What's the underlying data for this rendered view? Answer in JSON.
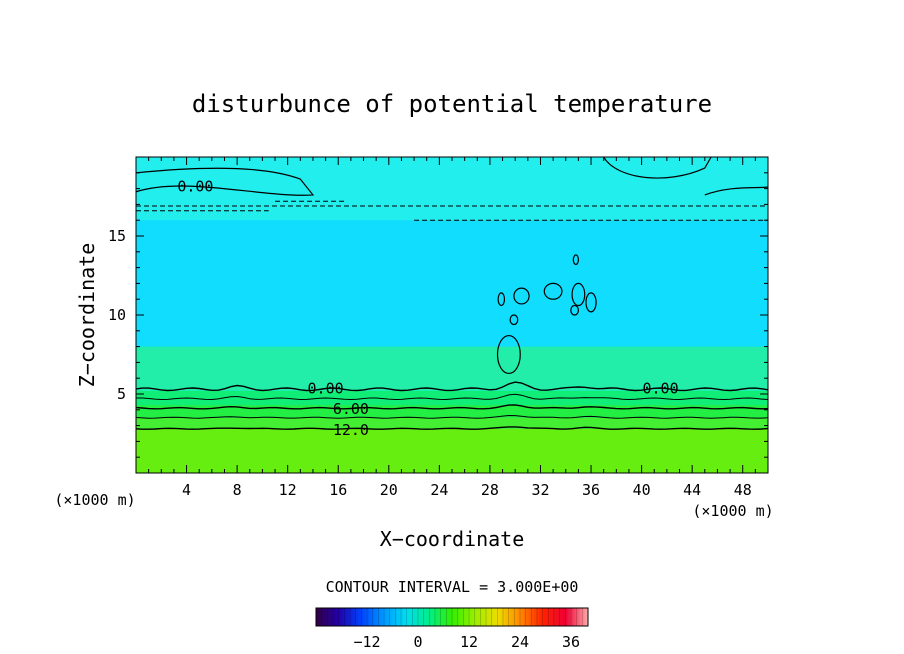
{
  "chart_data": {
    "type": "heatmap",
    "title": "disturbunce of potential temperature",
    "xlabel": "X−coordinate",
    "ylabel": "Z−coordinate",
    "x_unit_label_left": "(×1000 m)",
    "x_unit_label_right": "(×1000 m)",
    "x_ticks": [
      "4",
      "8",
      "12",
      "16",
      "20",
      "24",
      "28",
      "32",
      "36",
      "40",
      "44",
      "48"
    ],
    "y_ticks": [
      "5",
      "10",
      "15"
    ],
    "xlim": [
      0,
      50
    ],
    "ylim": [
      0,
      20
    ],
    "contour_interval_label": "CONTOUR INTERVAL = 3.000E+00",
    "contour_labels": [
      {
        "text": "0.00",
        "x": 4.7,
        "z": 18.2
      },
      {
        "text": "0.00",
        "x": 15.0,
        "z": 5.4
      },
      {
        "text": "0.00",
        "x": 41.5,
        "z": 5.4
      },
      {
        "text": "6.00",
        "x": 17.0,
        "z": 4.1
      },
      {
        "text": "12.0",
        "x": 17.0,
        "z": 2.8
      }
    ],
    "bands": [
      {
        "z_from": 0.0,
        "z_to": 2.8,
        "color": "#66ee11"
      },
      {
        "z_from": 2.8,
        "z_to": 3.5,
        "color": "#44ee33"
      },
      {
        "z_from": 3.5,
        "z_to": 4.3,
        "color": "#22ee44"
      },
      {
        "z_from": 4.3,
        "z_to": 5.2,
        "color": "#11ee77"
      },
      {
        "z_from": 5.2,
        "z_to": 8.0,
        "color": "#22eeaa"
      },
      {
        "z_from": 8.0,
        "z_to": 16.0,
        "color": "#11ddff"
      },
      {
        "z_from": 16.0,
        "z_to": 20.0,
        "color": "#22eeee"
      }
    ],
    "colorbar": {
      "ticks": [
        "−12",
        "0",
        "12",
        "24",
        "36"
      ],
      "tick_values": [
        -12,
        0,
        12,
        24,
        36
      ],
      "range": [
        -24,
        40
      ],
      "stops": [
        "#330044",
        "#2200aa",
        "#0044ff",
        "#0099ff",
        "#00ddee",
        "#00ee88",
        "#33ee00",
        "#99ee00",
        "#eedd00",
        "#ff8800",
        "#ff2200",
        "#ee0033",
        "#ffaaaa"
      ]
    }
  }
}
